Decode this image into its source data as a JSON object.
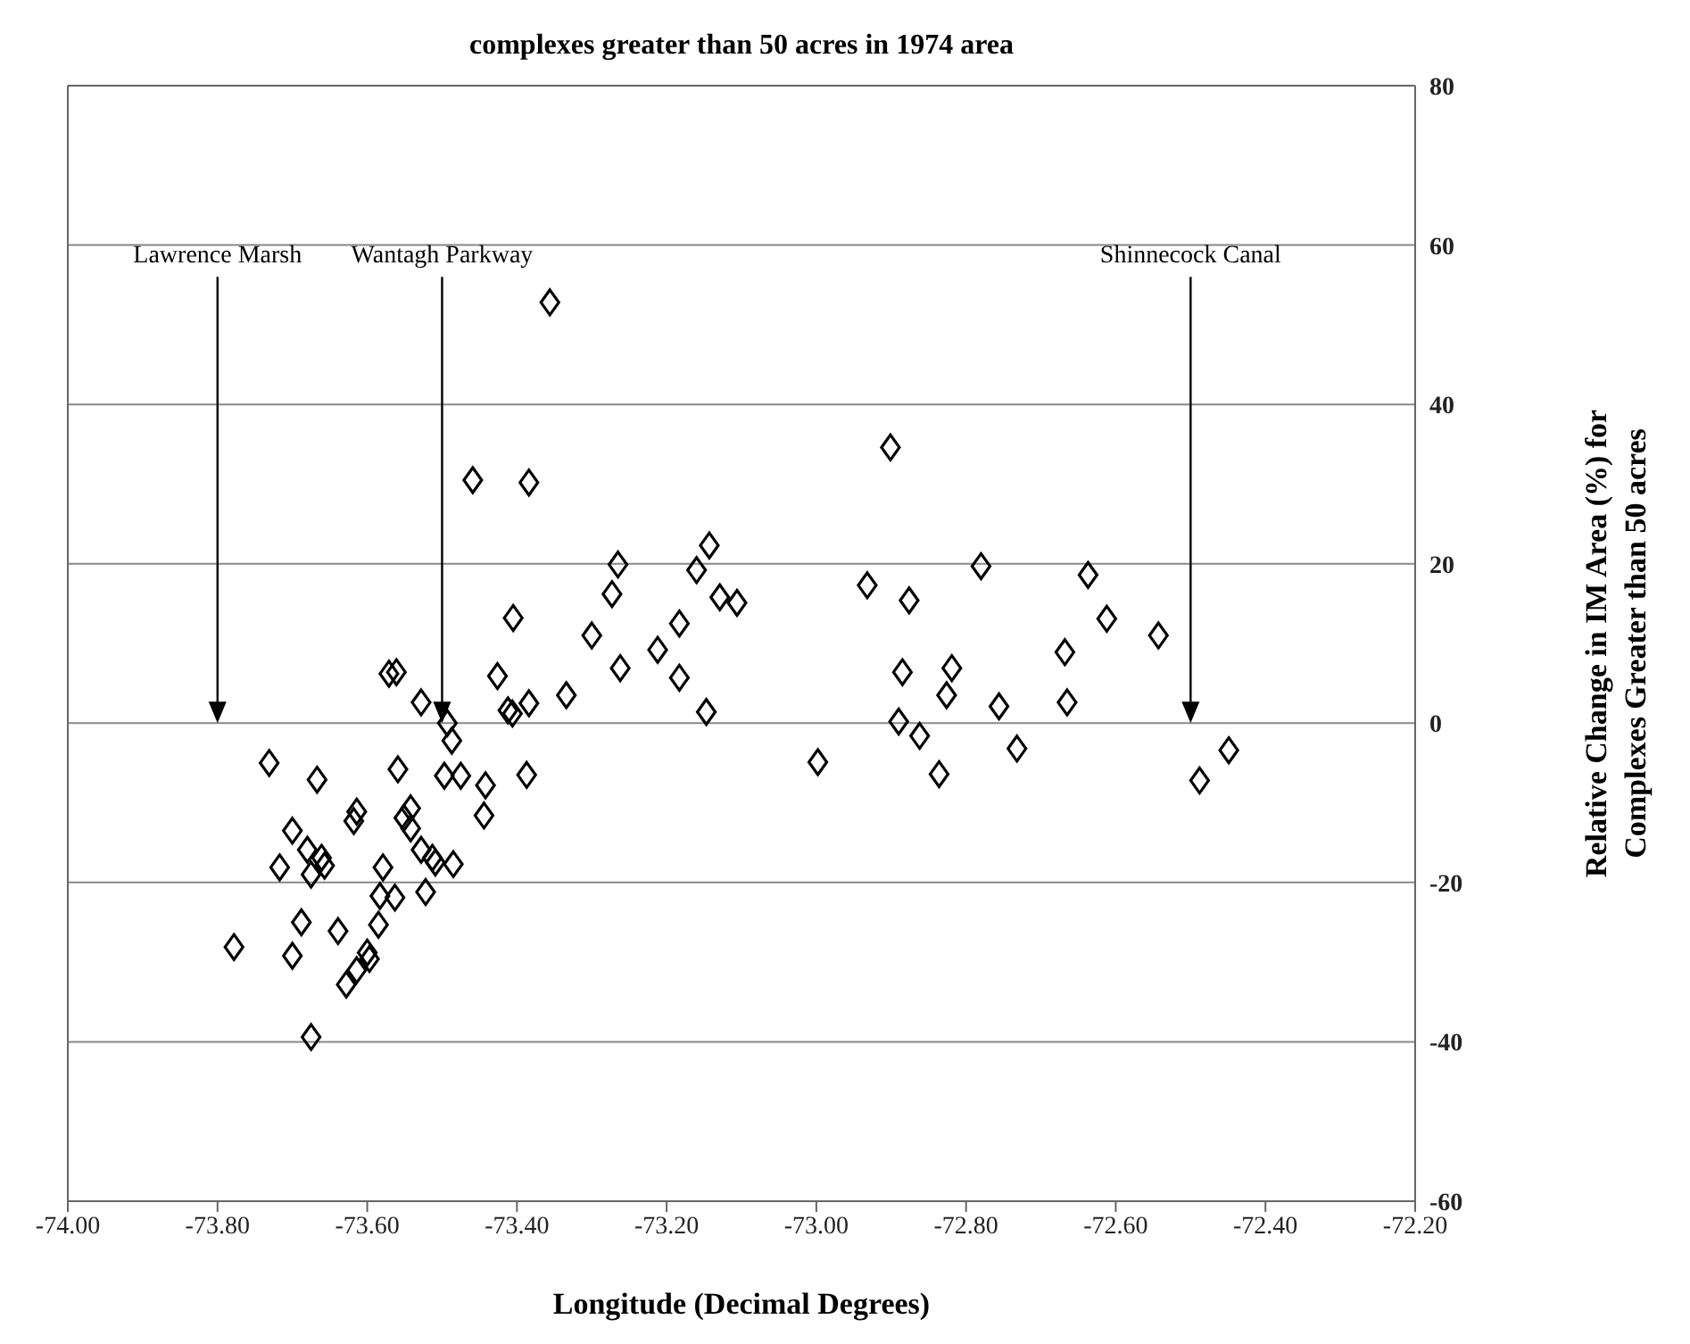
{
  "chart_data": {
    "type": "scatter",
    "title": "complexes greater than 50 acres in 1974 area",
    "xlabel": "Longitude (Decimal Degrees)",
    "ylabel": "Relative Change in IM Area (%) for Complexes Greater than 50 acres",
    "series": [
      {
        "color": "#000000",
        "x": [
          -73.356,
          -73.459,
          -73.384,
          -73.143,
          -73.265,
          -73.16,
          -73.273,
          -73.129,
          -73.106,
          -73.405,
          -73.183,
          -73.3,
          -73.212,
          -73.262,
          -73.183,
          -73.426,
          -73.571,
          -73.561,
          -73.334,
          -73.384,
          -73.528,
          -73.412,
          -73.406,
          -73.147,
          -73.493,
          -73.487,
          -73.731,
          -73.559,
          -73.497,
          -73.475,
          -73.667,
          -73.387,
          -73.442,
          -73.444,
          -73.614,
          -73.618,
          -73.542,
          -73.551,
          -73.542,
          -73.7,
          -73.68,
          -73.661,
          -73.657,
          -73.717,
          -73.675,
          -73.528,
          -73.513,
          -73.509,
          -73.485,
          -73.579,
          -73.522,
          -73.583,
          -73.563,
          -73.688,
          -73.639,
          -73.585,
          -73.778,
          -73.7,
          -73.6,
          -73.597,
          -73.614,
          -73.628,
          -73.675,
          -72.901,
          -72.78,
          -72.637,
          -72.932,
          -72.876,
          -72.612,
          -72.543,
          -72.668,
          -72.885,
          -72.819,
          -72.826,
          -72.756,
          -72.665,
          -72.89,
          -72.862,
          -72.732,
          -72.449,
          -72.998,
          -72.836,
          -72.488
        ],
        "values": [
          52.8,
          30.5,
          30.2,
          22.3,
          19.9,
          19.2,
          16.2,
          15.8,
          15.1,
          13.2,
          12.5,
          11.0,
          9.2,
          6.9,
          5.7,
          5.9,
          6.2,
          6.4,
          3.5,
          2.5,
          2.6,
          1.6,
          1.2,
          1.4,
          0,
          -2.2,
          -5.0,
          -5.8,
          -6.6,
          -6.6,
          -7.1,
          -6.5,
          -7.8,
          -11.6,
          -11.1,
          -12.3,
          -10.7,
          -11.9,
          -13.2,
          -13.5,
          -15.9,
          -16.9,
          -17.9,
          -18.1,
          -19.0,
          -15.9,
          -16.9,
          -17.5,
          -17.7,
          -18.1,
          -21.2,
          -21.7,
          -21.9,
          -25.0,
          -26.1,
          -25.3,
          -28.1,
          -29.2,
          -28.8,
          -29.6,
          -31.0,
          -32.8,
          -39.4,
          34.6,
          19.7,
          18.6,
          17.3,
          15.4,
          13.1,
          11.0,
          8.9,
          6.4,
          6.9,
          3.5,
          2.1,
          2.6,
          0.2,
          -1.6,
          -3.2,
          -3.4,
          -4.9,
          -6.4,
          -7.2
        ]
      }
    ],
    "xlim": [
      -74.0,
      -72.2
    ],
    "xticks": [
      {
        "value": -74.0,
        "label": "-74.00"
      },
      {
        "value": -73.8,
        "label": "-73.80"
      },
      {
        "value": -73.6,
        "label": "-73.60"
      },
      {
        "value": -73.4,
        "label": "-73.40"
      },
      {
        "value": -73.2,
        "label": "-73.20"
      },
      {
        "value": -73.0,
        "label": "-73.00"
      },
      {
        "value": -72.8,
        "label": "-72.80"
      },
      {
        "value": -72.6,
        "label": "-72.60"
      },
      {
        "value": -72.4,
        "label": "-72.40"
      },
      {
        "value": -72.2,
        "label": "-72.20"
      }
    ],
    "ylim": [
      -60,
      80
    ],
    "yticks": [
      -60,
      -40,
      -20,
      0,
      20,
      40,
      60,
      80
    ],
    "grid": "y",
    "marker": "diamond",
    "legend": false,
    "ref_lines": [
      {
        "axis": "x",
        "value": -73.8,
        "label": "Lawrence Marsh"
      },
      {
        "axis": "x",
        "value": -73.5,
        "label": "Wantagh Parkway"
      },
      {
        "axis": "x",
        "value": -72.5,
        "label": "Shinnecock Canal"
      }
    ]
  }
}
